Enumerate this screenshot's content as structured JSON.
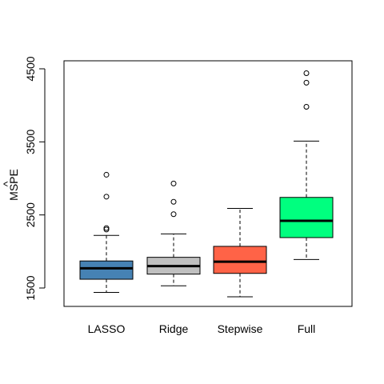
{
  "chart_data": {
    "type": "boxplot",
    "title": "",
    "xlabel": "",
    "ylabel": "MSPE",
    "ylabel_accent": "^",
    "ylim": [
      1300,
      4500
    ],
    "yticks": [
      1500,
      2500,
      3500,
      4500
    ],
    "ytick_labels": [
      "1500",
      "2500",
      "3500",
      "4500"
    ],
    "grid": false,
    "legend": "none",
    "categories": [
      "LASSO",
      "Ridge",
      "Stepwise",
      "Full"
    ],
    "boxes": [
      {
        "category": "LASSO",
        "color": "#4682B4",
        "whisker_low": 1440,
        "q1": 1620,
        "median": 1770,
        "q3": 1870,
        "whisker_high": 2220,
        "outliers": [
          2300,
          2320,
          2750,
          3050
        ]
      },
      {
        "category": "Ridge",
        "color": "#C0C0C0",
        "whisker_low": 1530,
        "q1": 1690,
        "median": 1800,
        "q3": 1920,
        "whisker_high": 2240,
        "outliers": [
          2510,
          2680,
          2930
        ]
      },
      {
        "category": "Stepwise",
        "color": "#FF6347",
        "whisker_low": 1380,
        "q1": 1700,
        "median": 1860,
        "q3": 2070,
        "whisker_high": 2590,
        "outliers": []
      },
      {
        "category": "Full",
        "color": "#00FF7F",
        "whisker_low": 1890,
        "q1": 2190,
        "median": 2420,
        "q3": 2740,
        "whisker_high": 3510,
        "outliers": [
          3980,
          4310,
          4440
        ]
      }
    ]
  }
}
